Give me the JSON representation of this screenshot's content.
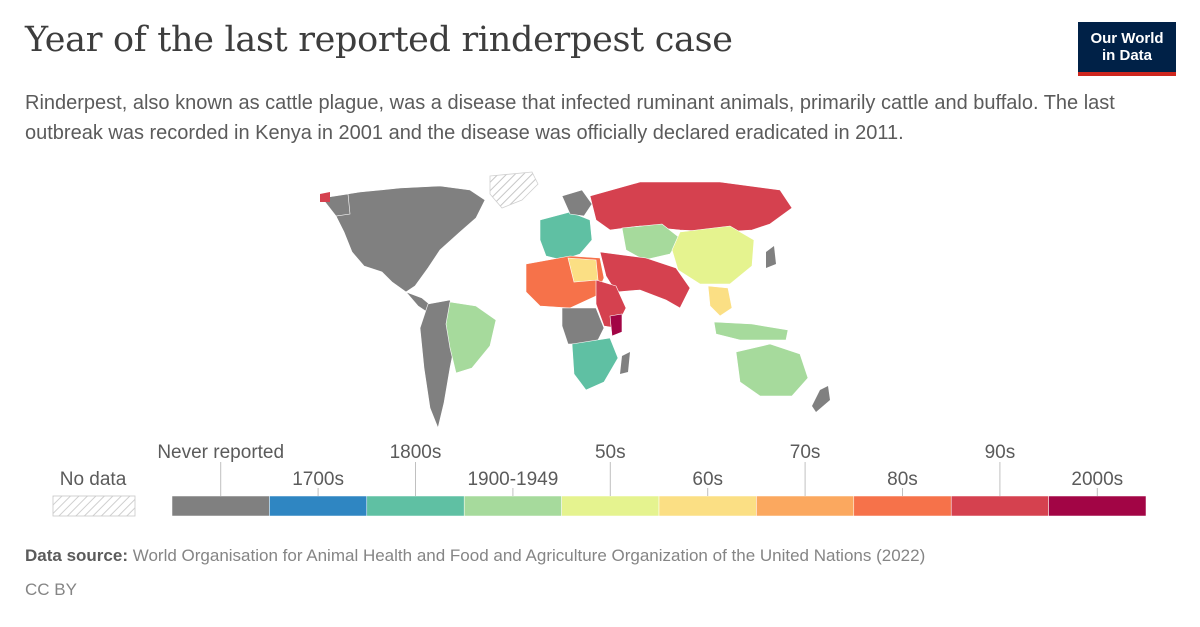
{
  "header": {
    "title": "Year of the last reported rinderpest case",
    "subtitle": "Rinderpest, also known as cattle plague, was a disease that infected ruminant animals, primarily cattle and buffalo. The last outbreak was recorded in Kenya in 2001 and the disease was officially declared eradicated in 2011."
  },
  "logo": {
    "line1": "Our World",
    "line2": "in Data"
  },
  "legend": {
    "no_data_label": "No data",
    "categories": [
      {
        "label": "Never reported",
        "color": "#808080"
      },
      {
        "label": "1700s",
        "color": "#2f86c2"
      },
      {
        "label": "1800s",
        "color": "#5fc0a3"
      },
      {
        "label": "1900-1949",
        "color": "#a6da9c"
      },
      {
        "label": "50s",
        "color": "#e5f38f"
      },
      {
        "label": "60s",
        "color": "#fbdf84"
      },
      {
        "label": "70s",
        "color": "#fba85f"
      },
      {
        "label": "80s",
        "color": "#f6724a"
      },
      {
        "label": "90s",
        "color": "#d5414f"
      },
      {
        "label": "2000s",
        "color": "#a20545"
      }
    ]
  },
  "footer": {
    "source_label": "Data source:",
    "source_text": "World Organisation for Animal Health and Food and Agriculture Organization of the United Nations (2022)",
    "license": "CC BY"
  }
}
